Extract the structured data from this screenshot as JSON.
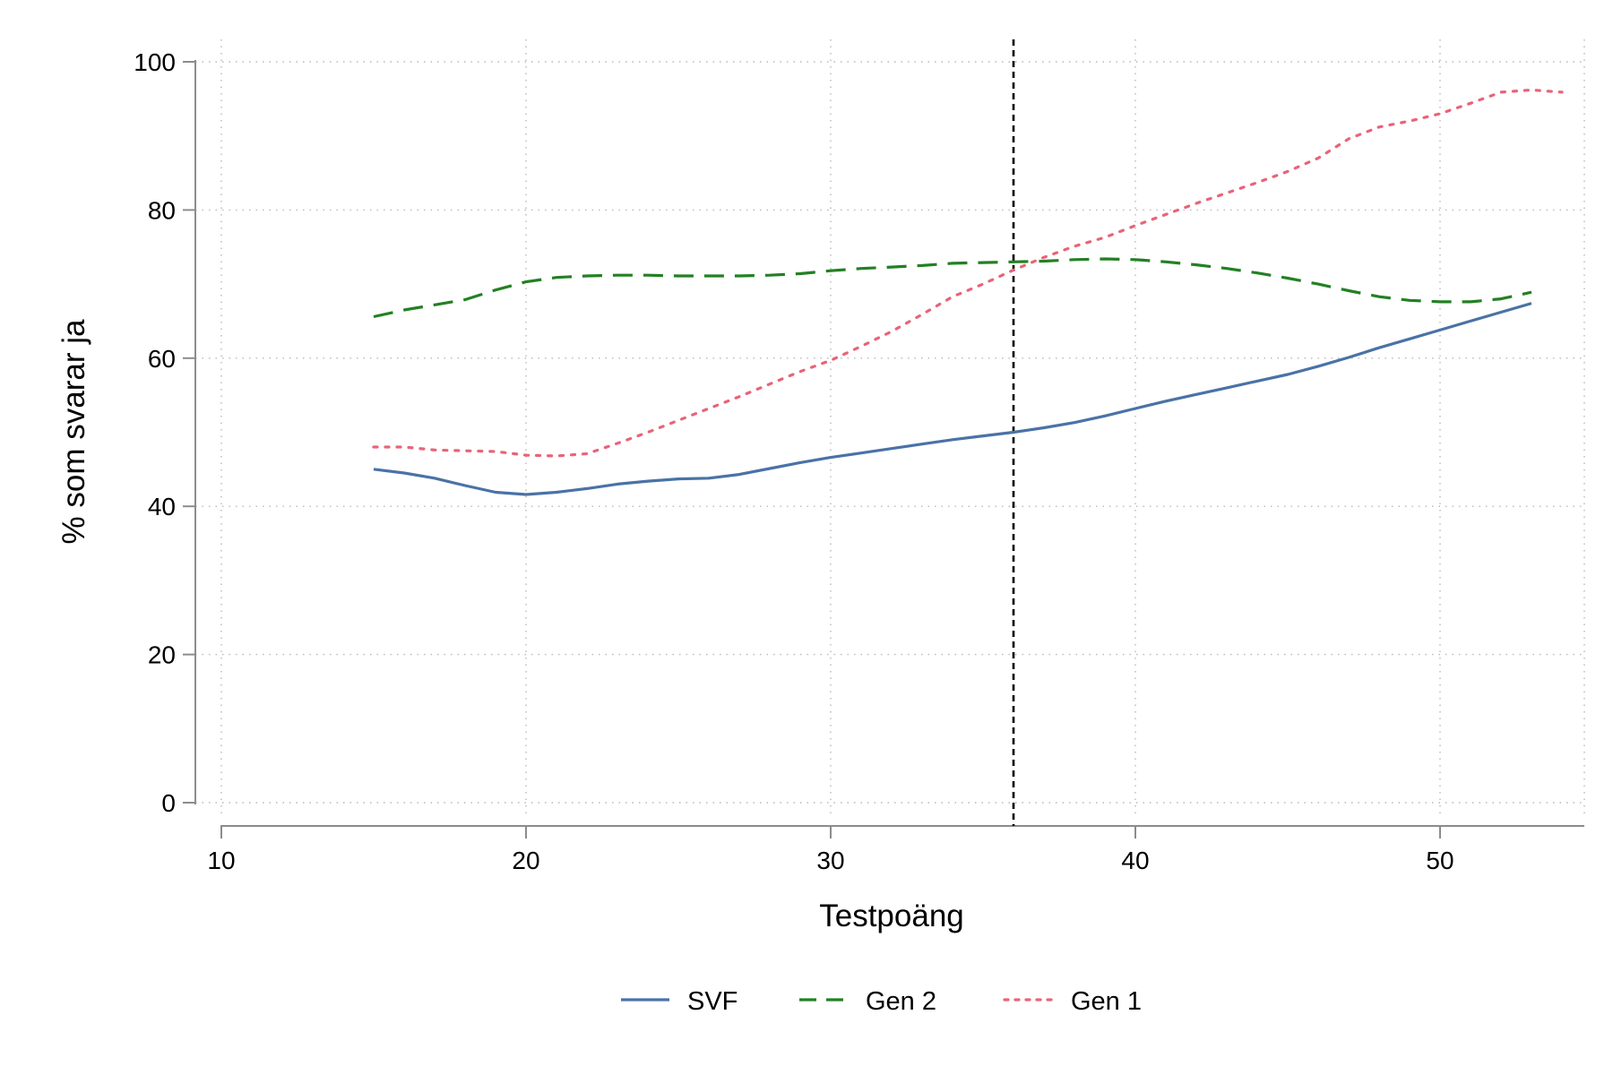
{
  "chart_data": {
    "type": "line",
    "title": "",
    "xlabel": "Testpoäng",
    "ylabel": "% som svarar ja",
    "xlim": [
      9,
      55
    ],
    "ylim": [
      -3,
      102
    ],
    "x_ticks": [
      10,
      20,
      30,
      40,
      50
    ],
    "y_ticks": [
      0,
      20,
      40,
      60,
      80,
      100
    ],
    "grid": true,
    "reference_line": {
      "x": 36,
      "style": "dashed",
      "color": "#000000"
    },
    "legend_position": "bottom",
    "series": [
      {
        "name": "SVF",
        "color": "#4a72a6",
        "style": "solid",
        "x": [
          15,
          16,
          17,
          18,
          19,
          20,
          21,
          22,
          23,
          24,
          25,
          26,
          27,
          28,
          29,
          30,
          31,
          32,
          33,
          34,
          35,
          36,
          37,
          38,
          39,
          40,
          41,
          42,
          43,
          44,
          45,
          46,
          47,
          48,
          49,
          50,
          51,
          52,
          53
        ],
        "y": [
          45.0,
          44.5,
          43.8,
          42.8,
          41.9,
          41.6,
          41.9,
          42.4,
          43.0,
          43.4,
          43.7,
          43.8,
          44.3,
          45.1,
          45.9,
          46.6,
          47.2,
          47.8,
          48.4,
          49.0,
          49.5,
          50.0,
          50.6,
          51.3,
          52.2,
          53.2,
          54.2,
          55.1,
          56.0,
          56.9,
          57.8,
          58.9,
          60.1,
          61.4,
          62.6,
          63.8,
          65.0,
          66.2,
          67.4
        ]
      },
      {
        "name": "Gen 2",
        "color": "#238023",
        "style": "dashed",
        "x": [
          15,
          16,
          17,
          18,
          19,
          20,
          21,
          22,
          23,
          24,
          25,
          26,
          27,
          28,
          29,
          30,
          31,
          32,
          33,
          34,
          35,
          36,
          37,
          38,
          39,
          40,
          41,
          42,
          43,
          44,
          45,
          46,
          47,
          48,
          49,
          50,
          51,
          52,
          53
        ],
        "y": [
          65.6,
          66.5,
          67.2,
          67.9,
          69.2,
          70.3,
          70.9,
          71.1,
          71.2,
          71.2,
          71.1,
          71.1,
          71.1,
          71.2,
          71.4,
          71.8,
          72.1,
          72.3,
          72.5,
          72.8,
          72.9,
          73.0,
          73.1,
          73.3,
          73.4,
          73.3,
          73.0,
          72.6,
          72.1,
          71.5,
          70.8,
          70.0,
          69.1,
          68.3,
          67.8,
          67.6,
          67.6,
          68.0,
          68.9
        ]
      },
      {
        "name": "Gen 1",
        "color": "#e96377",
        "style": "dotted",
        "x": [
          15,
          16,
          17,
          18,
          19,
          20,
          21,
          22,
          23,
          24,
          25,
          26,
          27,
          28,
          29,
          30,
          31,
          32,
          33,
          34,
          35,
          36,
          37,
          38,
          39,
          40,
          41,
          42,
          43,
          44,
          45,
          46,
          47,
          48,
          49,
          50,
          51,
          52,
          53,
          54
        ],
        "y": [
          48.0,
          48.0,
          47.6,
          47.5,
          47.4,
          46.9,
          46.8,
          47.1,
          48.5,
          50.0,
          51.6,
          53.2,
          54.8,
          56.5,
          58.2,
          59.7,
          61.6,
          63.6,
          65.9,
          68.3,
          70.0,
          71.9,
          73.6,
          75.1,
          76.3,
          77.9,
          79.4,
          80.9,
          82.3,
          83.7,
          85.2,
          87.0,
          89.6,
          91.2,
          92.0,
          93.0,
          94.4,
          95.9,
          96.2,
          95.9
        ]
      }
    ]
  }
}
